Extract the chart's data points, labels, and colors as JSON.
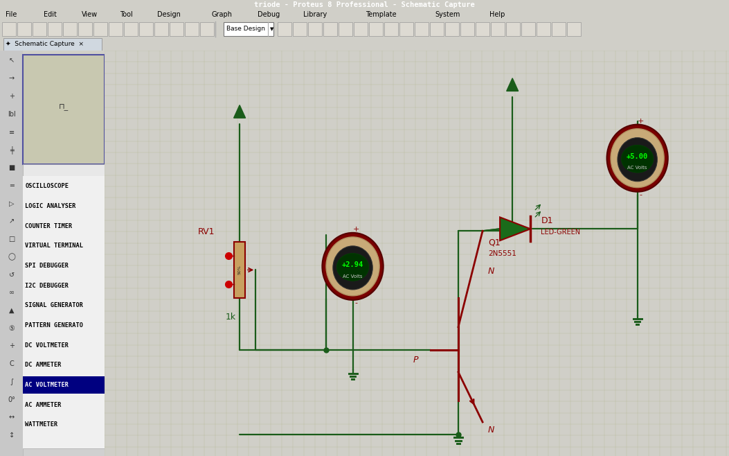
{
  "title_bar": "triode - Proteus 8 Professional - Schematic Capture",
  "menu_items": [
    "File",
    "Edit",
    "View",
    "Tool",
    "Design",
    "Graph",
    "Debug",
    "Library",
    "Template",
    "System",
    "Help"
  ],
  "tab_text": "Schematic Capture",
  "sidebar_items": [
    "OSCILLOSCOPE",
    "LOGIC ANALYSER",
    "COUNTER TIMER",
    "VIRTUAL TERMINAL",
    "SPI DEBUGGER",
    "I2C DEBUGGER",
    "SIGNAL GENERATOR",
    "PATTERN GENERATO",
    "DC VOLTMETER",
    "DC AMMETER",
    "AC VOLTMETER",
    "AC AMMETER",
    "WATTMETER"
  ],
  "selected_sidebar_item": "AC VOLTMETER",
  "bg_color": "#cac9a8",
  "grid_color": "#b8b896",
  "wire_color": "#1a5c1a",
  "component_color": "#8b0000",
  "label_color": "#8b0000",
  "meter1_value": "+2.94",
  "meter2_value": "+5.00",
  "meter_unit": "AC Volts",
  "transistor_label": "Q1",
  "transistor_type": "2N5551",
  "resistor_label": "RV1",
  "resistor_value": "1k",
  "diode_label": "D1",
  "diode_type": "LED-GREEN",
  "title_bg": "#00007a",
  "title_fg": "white",
  "toolbar_bg": "#d0cfc8",
  "sidebar_bg": "#d0d0d0",
  "sidebar_list_bg": "#f0f0f0",
  "sidebar_selected_bg": "#000080",
  "sidebar_selected_fg": "#ffffff",
  "sidebar_text_color": "#000000",
  "minimap_border": "#5050a0",
  "minimap_bg": "#c8c8b0",
  "tab_bar_bg": "#a0aab4",
  "tab_bg": "#d0d8e0"
}
